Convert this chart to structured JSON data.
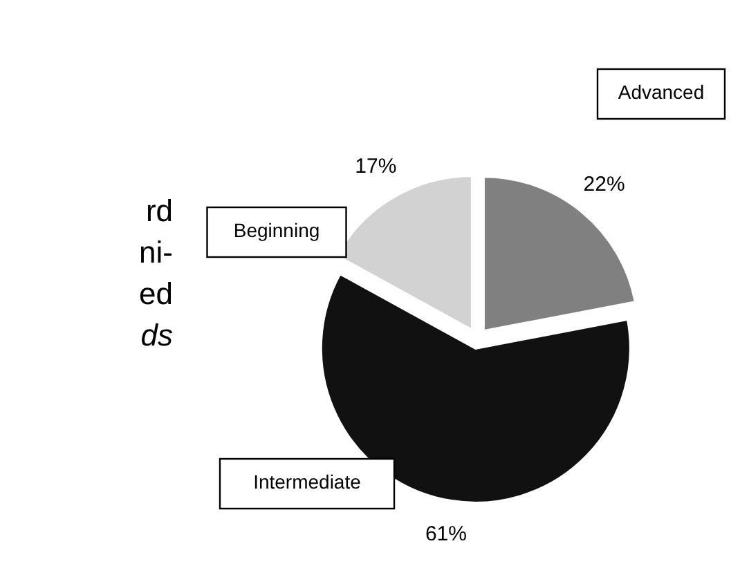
{
  "chart_data": {
    "type": "pie",
    "categories": [
      "Advanced",
      "Intermediate",
      "Beginning"
    ],
    "values": [
      22,
      61,
      17
    ],
    "colors": [
      "#808080",
      "#111111",
      "#d2d2d2"
    ],
    "value_labels": [
      "22%",
      "61%",
      "17%"
    ],
    "annotations": [
      "rd",
      "ni-",
      "ed",
      "ds"
    ]
  }
}
